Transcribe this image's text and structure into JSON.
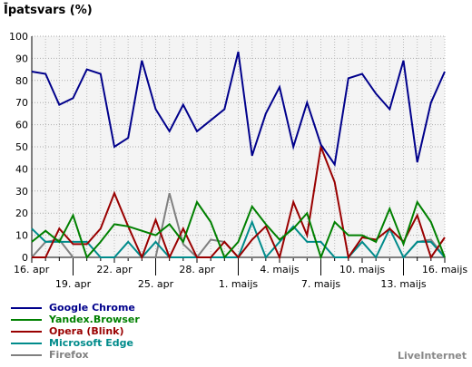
{
  "chart_data": {
    "type": "line",
    "title": "Īpatsvars (%)",
    "ylim": [
      0,
      100
    ],
    "yticks": [
      0,
      10,
      20,
      30,
      40,
      50,
      60,
      70,
      80,
      90,
      100
    ],
    "grid": true,
    "legend_position": "bottom-left",
    "x": [
      "16. apr",
      "17. apr",
      "18. apr",
      "19. apr",
      "20. apr",
      "21. apr",
      "22. apr",
      "23. apr",
      "24. apr",
      "25. apr",
      "26. apr",
      "27. apr",
      "28. apr",
      "29. apr",
      "30. apr",
      "1. maijs",
      "2. maijs",
      "3. maijs",
      "4. maijs",
      "5. maijs",
      "6. maijs",
      "7. maijs",
      "8. maijs",
      "9. maijs",
      "10. maijs",
      "11. maijs",
      "12. maijs",
      "13. maijs",
      "14. maijs",
      "15. maijs",
      "16. maijs"
    ],
    "x_tick_labels": [
      {
        "index": 0,
        "label": "16. apr",
        "row": 1
      },
      {
        "index": 3,
        "label": "19. apr",
        "row": 2
      },
      {
        "index": 6,
        "label": "22. apr",
        "row": 1
      },
      {
        "index": 9,
        "label": "25. apr",
        "row": 2
      },
      {
        "index": 12,
        "label": "28. apr",
        "row": 1
      },
      {
        "index": 15,
        "label": "1. maijs",
        "row": 2
      },
      {
        "index": 18,
        "label": "4. maijs",
        "row": 1
      },
      {
        "index": 21,
        "label": "7. maijs",
        "row": 2
      },
      {
        "index": 24,
        "label": "10. maijs",
        "row": 1
      },
      {
        "index": 27,
        "label": "13. maijs",
        "row": 2
      },
      {
        "index": 30,
        "label": "16. maijs",
        "row": 1
      }
    ],
    "series": [
      {
        "name": "Google Chrome",
        "color": "#00008b",
        "values": [
          84,
          83,
          69,
          72,
          85,
          83,
          50,
          54,
          89,
          67,
          57,
          69,
          57,
          62,
          67,
          93,
          46,
          65,
          77,
          50,
          70,
          51,
          42,
          81,
          83,
          74,
          67,
          89,
          43,
          70,
          84
        ]
      },
      {
        "name": "Yandex.Browser",
        "color": "#008000",
        "values": [
          7,
          12,
          7,
          19,
          0,
          7,
          15,
          14,
          12,
          10,
          15,
          7,
          25,
          16,
          0,
          7,
          23,
          15,
          8,
          13,
          20,
          0,
          16,
          10,
          10,
          7,
          22,
          6,
          25,
          16,
          0
        ]
      },
      {
        "name": "Opera (Blink)",
        "color": "#990000",
        "values": [
          0,
          0,
          13,
          6,
          6,
          13,
          29,
          14,
          0,
          17,
          0,
          13,
          0,
          0,
          7,
          0,
          8,
          14,
          0,
          25,
          10,
          50,
          34,
          0,
          9,
          8,
          13,
          7,
          19,
          0,
          9
        ]
      },
      {
        "name": "Microsoft Edge",
        "color": "#008b8b",
        "values": [
          13,
          7,
          7,
          7,
          7,
          0,
          0,
          7,
          0,
          7,
          0,
          0,
          0,
          0,
          0,
          0,
          16,
          0,
          7,
          14,
          7,
          7,
          0,
          0,
          7,
          0,
          13,
          0,
          7,
          7,
          0
        ]
      },
      {
        "name": "Firefox",
        "color": "#808080",
        "values": [
          0,
          7,
          8,
          0,
          0,
          0,
          0,
          0,
          0,
          0,
          29,
          6,
          0,
          8,
          7,
          0,
          0,
          0,
          0,
          0,
          0,
          0,
          0,
          0,
          0,
          0,
          0,
          0,
          7,
          8,
          0
        ]
      }
    ]
  },
  "watermark": "LiveInternet"
}
